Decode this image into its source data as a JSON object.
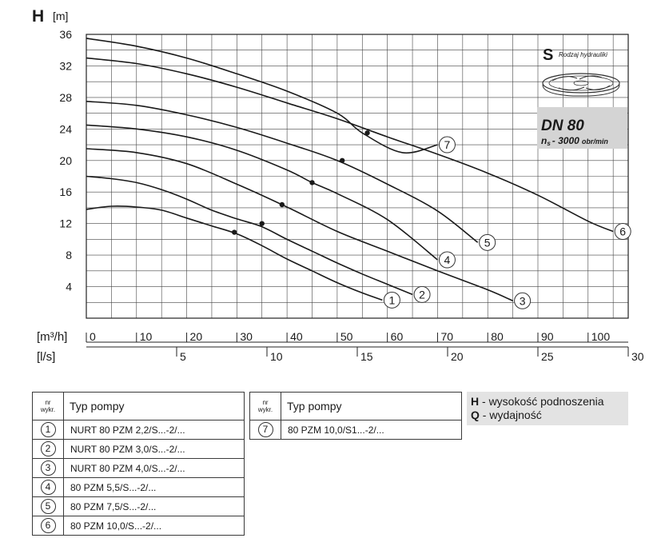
{
  "chart_data": {
    "type": "line",
    "ylabel_letter": "H",
    "ylabel_unit": "[m]",
    "ylim": [
      0,
      36
    ],
    "yticks": [
      "4",
      "8",
      "12",
      "16",
      "20",
      "24",
      "28",
      "32",
      "36"
    ],
    "xlim": [
      0,
      108
    ],
    "x_unit_primary": "[m³/h]",
    "x_unit_secondary": "[l/s]",
    "xticks_primary": [
      "0",
      "10",
      "20",
      "30",
      "40",
      "50",
      "60",
      "70",
      "80",
      "90",
      "100"
    ],
    "xticks_secondary": [
      "5",
      "10",
      "15",
      "20",
      "25",
      "30"
    ],
    "grid": true,
    "series": [
      {
        "name": "1",
        "points": [
          [
            0,
            13.8
          ],
          [
            5,
            14.2
          ],
          [
            10,
            14.1
          ],
          [
            15,
            13.7
          ],
          [
            20,
            12.7
          ],
          [
            25,
            11.7
          ],
          [
            30,
            10.7
          ],
          [
            35,
            9.2
          ],
          [
            40,
            7.5
          ],
          [
            45,
            6.0
          ],
          [
            50,
            4.5
          ],
          [
            55,
            3.2
          ],
          [
            59,
            2.3
          ]
        ],
        "marker": [
          29.5,
          10.9
        ]
      },
      {
        "name": "2",
        "points": [
          [
            0,
            18.0
          ],
          [
            5,
            17.7
          ],
          [
            10,
            17.2
          ],
          [
            15,
            16.3
          ],
          [
            20,
            15.1
          ],
          [
            25,
            13.7
          ],
          [
            30,
            12.6
          ],
          [
            35,
            11.6
          ],
          [
            40,
            10.0
          ],
          [
            45,
            8.5
          ],
          [
            50,
            7.0
          ],
          [
            55,
            5.6
          ],
          [
            60,
            4.3
          ],
          [
            65,
            3.0
          ]
        ],
        "marker": [
          35,
          12.0
        ]
      },
      {
        "name": "3",
        "points": [
          [
            0,
            21.5
          ],
          [
            10,
            21.0
          ],
          [
            20,
            19.6
          ],
          [
            30,
            17.0
          ],
          [
            40,
            14.1
          ],
          [
            50,
            11.0
          ],
          [
            60,
            8.5
          ],
          [
            70,
            6.0
          ],
          [
            80,
            3.6
          ],
          [
            85,
            2.2
          ]
        ],
        "marker": [
          39,
          14.4
        ]
      },
      {
        "name": "4",
        "points": [
          [
            0,
            24.5
          ],
          [
            10,
            24.0
          ],
          [
            20,
            23.0
          ],
          [
            30,
            21.3
          ],
          [
            40,
            18.8
          ],
          [
            45,
            17.2
          ],
          [
            50,
            15.8
          ],
          [
            60,
            12.5
          ],
          [
            70,
            7.4
          ]
        ],
        "marker": [
          45,
          17.2
        ]
      },
      {
        "name": "5",
        "points": [
          [
            0,
            27.5
          ],
          [
            10,
            27.0
          ],
          [
            20,
            25.8
          ],
          [
            30,
            24.2
          ],
          [
            40,
            22.2
          ],
          [
            50,
            20.0
          ],
          [
            60,
            17.0
          ],
          [
            70,
            13.6
          ],
          [
            78,
            9.6
          ]
        ],
        "marker": [
          51,
          20.0
        ]
      },
      {
        "name": "6",
        "points": [
          [
            0,
            33.0
          ],
          [
            10,
            32.3
          ],
          [
            20,
            31.0
          ],
          [
            30,
            29.3
          ],
          [
            40,
            27.3
          ],
          [
            50,
            25.3
          ],
          [
            60,
            23.0
          ],
          [
            70,
            20.8
          ],
          [
            80,
            18.4
          ],
          [
            90,
            15.6
          ],
          [
            100,
            12.3
          ],
          [
            105,
            11.0
          ]
        ],
        "marker": null
      },
      {
        "name": "7",
        "points": [
          [
            0,
            35.5
          ],
          [
            10,
            34.5
          ],
          [
            20,
            33.0
          ],
          [
            30,
            31.0
          ],
          [
            40,
            28.8
          ],
          [
            50,
            26.0
          ],
          [
            55,
            23.5
          ],
          [
            63,
            21.0
          ],
          [
            70,
            22.0
          ]
        ],
        "marker": [
          56,
          23.5
        ]
      }
    ],
    "annotation": {
      "hydraulic_type_letter": "S",
      "hydraulic_type_label": "Rodzaj hydrauliki",
      "dn": "DN 80",
      "speed": "- 3000",
      "speed_symbol": "n",
      "speed_sub": "s",
      "speed_unit": "obr/min"
    }
  },
  "table_left": {
    "header_nr": [
      "nr",
      "wykr."
    ],
    "header_type": "Typ pompy",
    "rows": [
      {
        "nr": "1",
        "type": "NURT 80 PZM 2,2/S...-2/..."
      },
      {
        "nr": "2",
        "type": "NURT 80 PZM 3,0/S...-2/..."
      },
      {
        "nr": "3",
        "type": "NURT 80 PZM 4,0/S...-2/..."
      },
      {
        "nr": "4",
        "type": "80 PZM 5,5/S...-2/..."
      },
      {
        "nr": "5",
        "type": "80 PZM 7,5/S...-2/..."
      },
      {
        "nr": "6",
        "type": "80 PZM 10,0/S...-2/..."
      }
    ]
  },
  "table_right": {
    "header_nr": [
      "nr",
      "wykr."
    ],
    "header_type": "Typ pompy",
    "rows": [
      {
        "nr": "7",
        "type": "80 PZM 10,0/S1...-2/..."
      }
    ]
  },
  "legend": {
    "h_symbol": "H",
    "h_text": " - wysokość podnoszenia",
    "q_symbol": "Q",
    "q_text": " - wydajność"
  },
  "colors": {
    "curve": "#1a1a1a",
    "grid": "#444444",
    "legend_bg": "#e3e3e3",
    "info_box_bg": "#d4d4d4"
  }
}
